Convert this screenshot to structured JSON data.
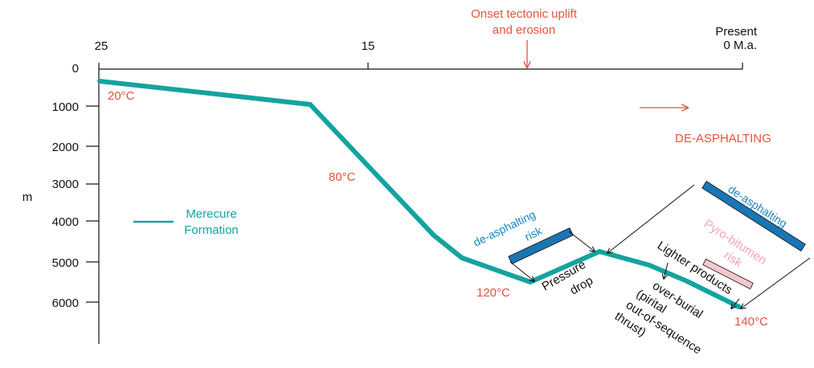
{
  "colors": {
    "curve": "#14a3a0",
    "annotation_red": "#e8503c",
    "blue_band": "#1a75b4",
    "blue_text": "#1a84c2",
    "pink": "#f0a6b8",
    "pink_fill": "#f6c7cf",
    "black": "#111111"
  },
  "top_axis": {
    "ticks": [
      "25",
      "15"
    ],
    "present_label_line1": "Present",
    "present_label_line2": "0 M.a."
  },
  "left_axis": {
    "ticks": [
      "0",
      "1000",
      "2000",
      "3000",
      "4000",
      "5000",
      "6000"
    ],
    "unit_label": "m"
  },
  "temperatures": [
    "20°C",
    "80°C",
    "120°C",
    "140°C"
  ],
  "legend": {
    "line1": "Merecure",
    "line2": "Formation"
  },
  "onset": {
    "line1": "Onset tectonic uplift",
    "line2": "and erosion"
  },
  "deasphalting_title": "DE-ASPHALTING",
  "deasphalting_risk": {
    "line1": "de-asphalting",
    "line2": "risk"
  },
  "deasphalting_band": "de-asphalting",
  "pyrobitumen": {
    "line1": "Pyro-bitumen",
    "line2": "risk"
  },
  "lighter_products": "Lighter products",
  "pressure_drop": {
    "line1": "Pressure",
    "line2": "drop"
  },
  "overburial": {
    "line1": "over-burial",
    "line2": "(pirital",
    "line3": "out-of-sequence",
    "line4": "thrust)"
  }
}
